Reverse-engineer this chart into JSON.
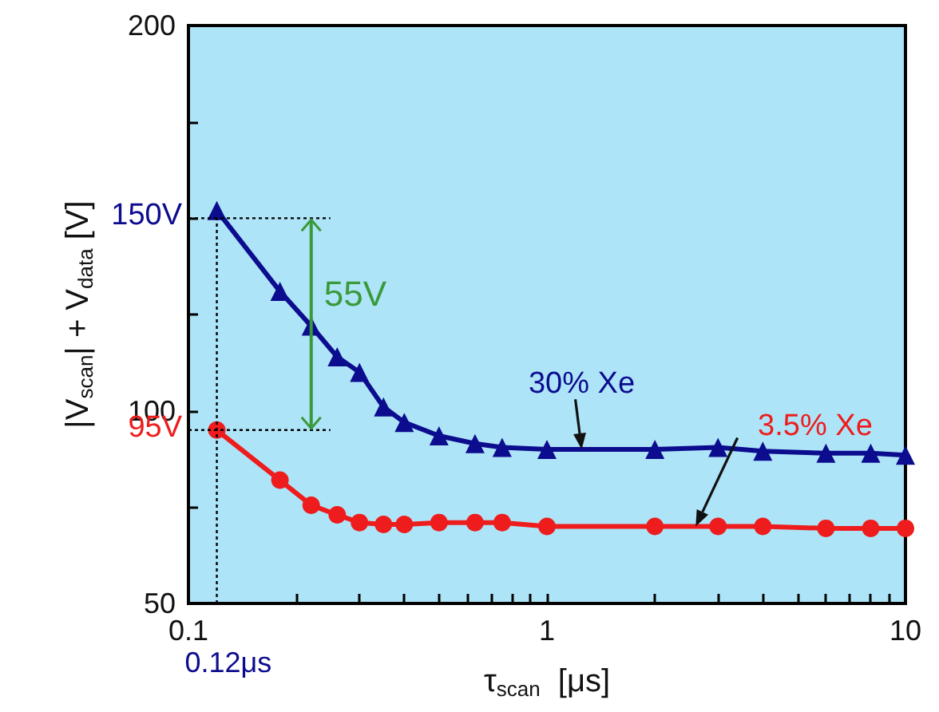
{
  "chart_data": {
    "type": "line",
    "xlabel": "τ$_{scan}$  [μs]",
    "ylabel": "|V$_{scan}$| + V$_{data}$ [V]",
    "log": "x",
    "grid": false,
    "legend": false,
    "xlim": [
      0.1,
      10
    ],
    "xticks": [
      0.1,
      {
        "value": 0.2,
        "label": null
      },
      {
        "value": 0.3,
        "label": null
      },
      {
        "value": 0.4,
        "label": null
      },
      {
        "value": 0.5,
        "label": null
      },
      {
        "value": 0.6,
        "label": null
      },
      {
        "value": 0.7,
        "label": null
      },
      {
        "value": 0.8,
        "label": null
      },
      {
        "value": 0.9,
        "label": null
      },
      1,
      {
        "value": 2,
        "label": null
      },
      {
        "value": 3,
        "label": null
      },
      {
        "value": 4,
        "label": null
      },
      {
        "value": 5,
        "label": null
      },
      {
        "value": 6,
        "label": null
      },
      {
        "value": 7,
        "label": null
      },
      {
        "value": 8,
        "label": null
      },
      {
        "value": 9,
        "label": null
      },
      10
    ],
    "ylim": [
      50,
      200
    ],
    "yticks": [
      50,
      {
        "value": 75,
        "label": null
      },
      100,
      {
        "value": 125,
        "label": null
      },
      {
        "value": 150,
        "label": null
      },
      {
        "value": 175,
        "label": null
      },
      200
    ],
    "x": [
      0.12,
      0.18,
      0.22,
      0.26,
      0.3,
      0.35,
      0.4,
      0.5,
      0.63,
      0.75,
      1,
      2,
      3,
      4,
      6,
      8,
      10
    ],
    "series": [
      {
        "name": "30% Xe",
        "color": "#0c0c8e",
        "marker": "triangle",
        "values": [
          152,
          131,
          122,
          114,
          110,
          101,
          97,
          93.5,
          91.5,
          90.5,
          90,
          90,
          90.5,
          89.5,
          89,
          89,
          88.5
        ]
      },
      {
        "name": "3.5% Xe",
        "color": "#ee1c1c",
        "marker": "circle",
        "values": [
          95,
          82,
          75.5,
          73,
          71,
          70.5,
          70.5,
          71,
          71,
          71,
          70,
          70,
          70,
          70,
          69.5,
          69.5,
          69.5
        ]
      }
    ],
    "ref_lines": [
      {
        "axis": "y",
        "value": 150,
        "label": "150V",
        "line_style": "dotted"
      },
      {
        "axis": "y",
        "value": 95,
        "label": "95V",
        "line_style": "dotted"
      },
      {
        "axis": "x",
        "value": 0.12,
        "label": "0.12μs",
        "line_style": "dotted"
      }
    ],
    "annotations": [
      {
        "text": "55V",
        "x": 0.22,
        "y": 122.5
      }
    ]
  }
}
